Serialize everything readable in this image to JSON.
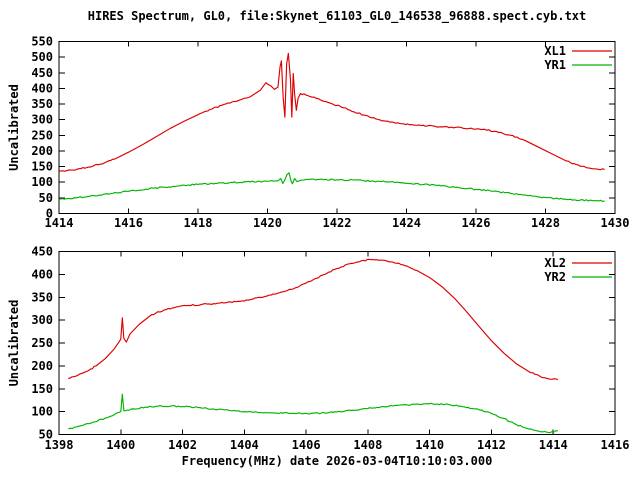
{
  "title": "HIRES Spectrum, GL0, file:Skynet_61103_GL0_146538_96888.spect.cyb.txt",
  "xlabel": "Frequency(MHz) date 2026-03-04T10:10:03.000",
  "colors": {
    "series_red": "#dd0000",
    "series_green": "#00b400",
    "axis": "#000000",
    "background": "#ffffff"
  },
  "chart_data": [
    {
      "type": "line",
      "ylabel": "Uncalibrated",
      "xlim": [
        1414,
        1430
      ],
      "ylim": [
        0,
        550
      ],
      "xticks": [
        1414,
        1416,
        1418,
        1420,
        1422,
        1424,
        1426,
        1428,
        1430
      ],
      "yticks": [
        0,
        50,
        100,
        150,
        200,
        250,
        300,
        350,
        400,
        450,
        500,
        550
      ],
      "grid": false,
      "legend_position": "top-right-inside",
      "series": [
        {
          "name": "XL1",
          "color": "#dd0000",
          "points": [
            [
              1414.0,
              135
            ],
            [
              1414.4,
              139
            ],
            [
              1414.8,
              147
            ],
            [
              1415.2,
              158
            ],
            [
              1415.6,
              174
            ],
            [
              1416.0,
              196
            ],
            [
              1416.4,
              220
            ],
            [
              1416.8,
              246
            ],
            [
              1417.2,
              272
            ],
            [
              1417.6,
              295
            ],
            [
              1418.0,
              316
            ],
            [
              1418.4,
              334
            ],
            [
              1418.8,
              350
            ],
            [
              1419.2,
              363
            ],
            [
              1419.5,
              373
            ],
            [
              1419.8,
              395
            ],
            [
              1419.95,
              418
            ],
            [
              1420.1,
              408
            ],
            [
              1420.2,
              397
            ],
            [
              1420.3,
              404
            ],
            [
              1420.36,
              468
            ],
            [
              1420.4,
              488
            ],
            [
              1420.45,
              372
            ],
            [
              1420.5,
              308
            ],
            [
              1420.55,
              478
            ],
            [
              1420.6,
              512
            ],
            [
              1420.66,
              430
            ],
            [
              1420.7,
              308
            ],
            [
              1420.74,
              448
            ],
            [
              1420.78,
              382
            ],
            [
              1420.83,
              330
            ],
            [
              1420.88,
              368
            ],
            [
              1420.95,
              384
            ],
            [
              1421.1,
              379
            ],
            [
              1421.4,
              368
            ],
            [
              1421.8,
              353
            ],
            [
              1422.2,
              338
            ],
            [
              1422.6,
              321
            ],
            [
              1423.0,
              306
            ],
            [
              1423.4,
              295
            ],
            [
              1423.8,
              288
            ],
            [
              1424.2,
              283
            ],
            [
              1424.6,
              280
            ],
            [
              1425.0,
              277
            ],
            [
              1425.4,
              275
            ],
            [
              1425.8,
              272
            ],
            [
              1426.2,
              269
            ],
            [
              1426.6,
              262
            ],
            [
              1427.0,
              250
            ],
            [
              1427.4,
              234
            ],
            [
              1427.8,
              212
            ],
            [
              1428.2,
              190
            ],
            [
              1428.6,
              168
            ],
            [
              1429.0,
              151
            ],
            [
              1429.35,
              143
            ],
            [
              1429.7,
              141
            ]
          ]
        },
        {
          "name": "YR1",
          "color": "#00b400",
          "points": [
            [
              1414.0,
              45
            ],
            [
              1414.5,
              50
            ],
            [
              1415.0,
              57
            ],
            [
              1415.5,
              64
            ],
            [
              1416.0,
              71
            ],
            [
              1416.5,
              78
            ],
            [
              1417.0,
              84
            ],
            [
              1417.5,
              89
            ],
            [
              1418.0,
              93
            ],
            [
              1418.5,
              96
            ],
            [
              1419.0,
              99
            ],
            [
              1419.5,
              101
            ],
            [
              1420.0,
              103
            ],
            [
              1420.3,
              104
            ],
            [
              1420.38,
              112
            ],
            [
              1420.44,
              96
            ],
            [
              1420.5,
              108
            ],
            [
              1420.56,
              124
            ],
            [
              1420.62,
              130
            ],
            [
              1420.68,
              103
            ],
            [
              1420.72,
              95
            ],
            [
              1420.78,
              112
            ],
            [
              1420.85,
              102
            ],
            [
              1421.0,
              107
            ],
            [
              1421.5,
              109
            ],
            [
              1422.0,
              108
            ],
            [
              1422.5,
              107
            ],
            [
              1423.0,
              104
            ],
            [
              1423.5,
              101
            ],
            [
              1424.0,
              97
            ],
            [
              1424.5,
              93
            ],
            [
              1425.0,
              88
            ],
            [
              1425.5,
              83
            ],
            [
              1426.0,
              77
            ],
            [
              1426.5,
              71
            ],
            [
              1427.0,
              64
            ],
            [
              1427.5,
              57
            ],
            [
              1428.0,
              51
            ],
            [
              1428.5,
              46
            ],
            [
              1429.0,
              43
            ],
            [
              1429.35,
              41
            ],
            [
              1429.7,
              40
            ]
          ]
        }
      ]
    },
    {
      "type": "line",
      "ylabel": "Uncalibrated",
      "xlim": [
        1398,
        1416
      ],
      "ylim": [
        50,
        450
      ],
      "xticks": [
        1398,
        1400,
        1402,
        1404,
        1406,
        1408,
        1410,
        1412,
        1414,
        1416
      ],
      "yticks": [
        50,
        100,
        150,
        200,
        250,
        300,
        350,
        400,
        450
      ],
      "grid": false,
      "legend_position": "top-right-inside",
      "series": [
        {
          "name": "XL2",
          "color": "#dd0000",
          "points": [
            [
              1398.3,
              172
            ],
            [
              1398.6,
              179
            ],
            [
              1398.9,
              188
            ],
            [
              1399.2,
              200
            ],
            [
              1399.5,
              216
            ],
            [
              1399.8,
              238
            ],
            [
              1400.0,
              258
            ],
            [
              1400.05,
              305
            ],
            [
              1400.1,
              260
            ],
            [
              1400.18,
              252
            ],
            [
              1400.3,
              270
            ],
            [
              1400.6,
              291
            ],
            [
              1401.0,
              312
            ],
            [
              1401.4,
              322
            ],
            [
              1401.8,
              329
            ],
            [
              1402.2,
              332
            ],
            [
              1402.6,
              334
            ],
            [
              1403.0,
              336
            ],
            [
              1403.4,
              338
            ],
            [
              1403.8,
              341
            ],
            [
              1404.2,
              345
            ],
            [
              1404.6,
              350
            ],
            [
              1405.0,
              357
            ],
            [
              1405.4,
              365
            ],
            [
              1405.8,
              375
            ],
            [
              1406.2,
              387
            ],
            [
              1406.6,
              400
            ],
            [
              1407.0,
              413
            ],
            [
              1407.4,
              423
            ],
            [
              1407.8,
              430
            ],
            [
              1408.1,
              432
            ],
            [
              1408.4,
              431
            ],
            [
              1408.8,
              427
            ],
            [
              1409.2,
              419
            ],
            [
              1409.6,
              408
            ],
            [
              1410.0,
              393
            ],
            [
              1410.4,
              373
            ],
            [
              1410.8,
              348
            ],
            [
              1411.2,
              318
            ],
            [
              1411.6,
              286
            ],
            [
              1412.0,
              255
            ],
            [
              1412.4,
              228
            ],
            [
              1412.8,
              205
            ],
            [
              1413.2,
              188
            ],
            [
              1413.6,
              176
            ],
            [
              1413.9,
              171
            ],
            [
              1414.15,
              170
            ]
          ]
        },
        {
          "name": "YR2",
          "color": "#00b400",
          "points": [
            [
              1398.3,
              62
            ],
            [
              1398.7,
              69
            ],
            [
              1399.1,
              77
            ],
            [
              1399.5,
              86
            ],
            [
              1399.8,
              94
            ],
            [
              1400.0,
              100
            ],
            [
              1400.05,
              138
            ],
            [
              1400.1,
              102
            ],
            [
              1400.4,
              106
            ],
            [
              1400.8,
              110
            ],
            [
              1401.2,
              112
            ],
            [
              1401.6,
              112
            ],
            [
              1402.0,
              111
            ],
            [
              1402.5,
              109
            ],
            [
              1403.0,
              106
            ],
            [
              1403.5,
              103
            ],
            [
              1404.0,
              100
            ],
            [
              1404.5,
              98
            ],
            [
              1405.0,
              97
            ],
            [
              1405.5,
              96
            ],
            [
              1406.0,
              96
            ],
            [
              1406.5,
              97
            ],
            [
              1407.0,
              99
            ],
            [
              1407.5,
              103
            ],
            [
              1408.0,
              107
            ],
            [
              1408.5,
              111
            ],
            [
              1409.0,
              114
            ],
            [
              1409.5,
              116
            ],
            [
              1410.0,
              117
            ],
            [
              1410.5,
              116
            ],
            [
              1411.0,
              112
            ],
            [
              1411.5,
              106
            ],
            [
              1412.0,
              96
            ],
            [
              1412.4,
              85
            ],
            [
              1412.8,
              72
            ],
            [
              1413.2,
              62
            ],
            [
              1413.6,
              56
            ],
            [
              1413.9,
              54
            ],
            [
              1414.15,
              58
            ]
          ]
        }
      ]
    }
  ]
}
